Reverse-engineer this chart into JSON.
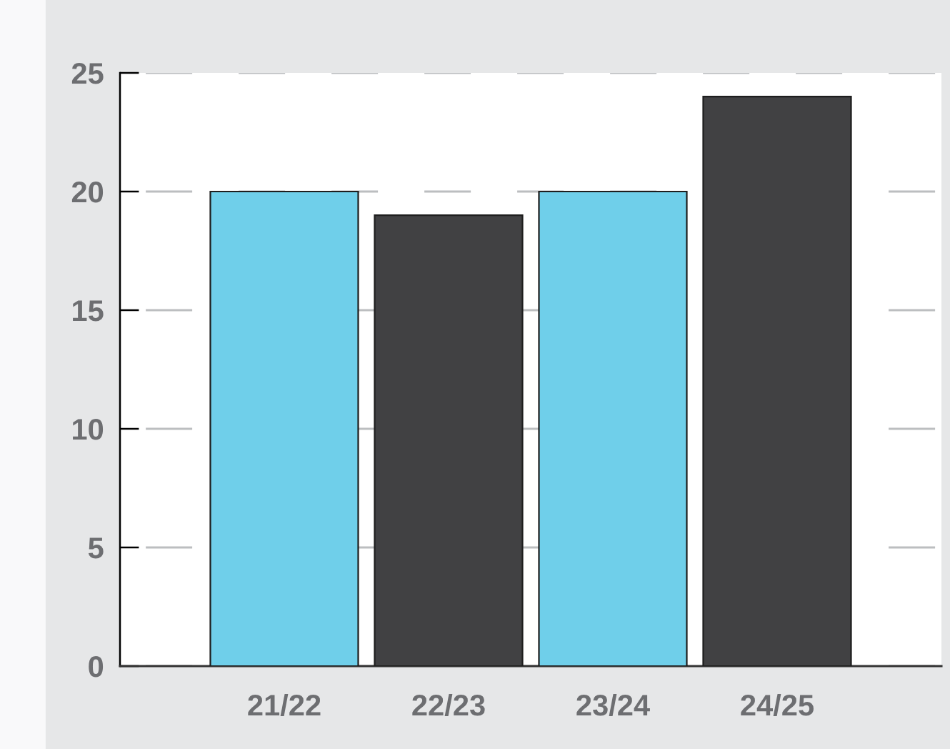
{
  "chart_data": {
    "type": "bar",
    "categories": [
      "21/22",
      "22/23",
      "23/24",
      "24/25"
    ],
    "values": [
      20,
      19,
      20,
      24
    ],
    "colors": [
      "#6fcfea",
      "#414143",
      "#6fcfea",
      "#414143"
    ],
    "ylim": [
      0,
      25
    ],
    "yticks": [
      0,
      5,
      10,
      15,
      20,
      25
    ],
    "grid": "y"
  }
}
